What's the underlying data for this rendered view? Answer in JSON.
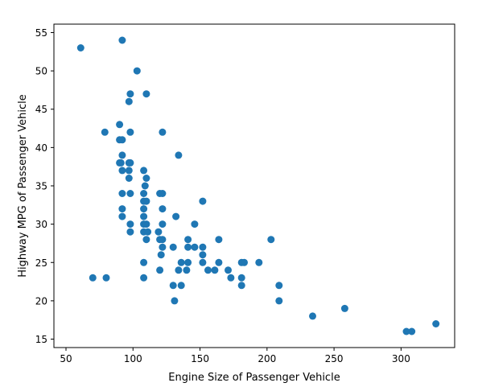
{
  "chart_data": {
    "type": "scatter",
    "title": "",
    "xlabel": "Engine Size of Passenger Vehicle",
    "ylabel": "Highway MPG of Passenger Vehicle",
    "xlim": [
      41,
      340
    ],
    "ylim": [
      13.9,
      56.1
    ],
    "xticks": [
      50,
      100,
      150,
      200,
      250,
      300
    ],
    "yticks": [
      15,
      20,
      25,
      30,
      35,
      40,
      45,
      50,
      55
    ],
    "grid": false,
    "legend": "none",
    "marker_color": "#1f77b4",
    "series": [
      {
        "points": [
          [
            61,
            53
          ],
          [
            70,
            23
          ],
          [
            79,
            42
          ],
          [
            80,
            23
          ],
          [
            90,
            43
          ],
          [
            90,
            38
          ],
          [
            90,
            41
          ],
          [
            91,
            38
          ],
          [
            92,
            54
          ],
          [
            92,
            39
          ],
          [
            92,
            37
          ],
          [
            92,
            34
          ],
          [
            92,
            32
          ],
          [
            92,
            31
          ],
          [
            92,
            41
          ],
          [
            97,
            36
          ],
          [
            97,
            37
          ],
          [
            97,
            46
          ],
          [
            97,
            38
          ],
          [
            98,
            42
          ],
          [
            98,
            38
          ],
          [
            98,
            47
          ],
          [
            98,
            34
          ],
          [
            98,
            30
          ],
          [
            98,
            29
          ],
          [
            103,
            50
          ],
          [
            108,
            37
          ],
          [
            108,
            34
          ],
          [
            108,
            33
          ],
          [
            108,
            32
          ],
          [
            108,
            31
          ],
          [
            108,
            30
          ],
          [
            108,
            29
          ],
          [
            108,
            25
          ],
          [
            108,
            23
          ],
          [
            109,
            35
          ],
          [
            110,
            47
          ],
          [
            110,
            36
          ],
          [
            110,
            33
          ],
          [
            110,
            30
          ],
          [
            110,
            28
          ],
          [
            111,
            29
          ],
          [
            119,
            29
          ],
          [
            120,
            34
          ],
          [
            120,
            28
          ],
          [
            120,
            24
          ],
          [
            121,
            26
          ],
          [
            122,
            42
          ],
          [
            122,
            34
          ],
          [
            122,
            32
          ],
          [
            122,
            30
          ],
          [
            122,
            28
          ],
          [
            122,
            27
          ],
          [
            130,
            27
          ],
          [
            130,
            22
          ],
          [
            131,
            20
          ],
          [
            132,
            31
          ],
          [
            134,
            39
          ],
          [
            134,
            24
          ],
          [
            136,
            25
          ],
          [
            136,
            22
          ],
          [
            140,
            24
          ],
          [
            141,
            27
          ],
          [
            141,
            28
          ],
          [
            141,
            25
          ],
          [
            146,
            30
          ],
          [
            146,
            27
          ],
          [
            152,
            33
          ],
          [
            152,
            27
          ],
          [
            152,
            26
          ],
          [
            152,
            25
          ],
          [
            156,
            24
          ],
          [
            161,
            24
          ],
          [
            164,
            28
          ],
          [
            164,
            25
          ],
          [
            171,
            24
          ],
          [
            173,
            23
          ],
          [
            181,
            25
          ],
          [
            181,
            23
          ],
          [
            181,
            22
          ],
          [
            183,
            25
          ],
          [
            194,
            25
          ],
          [
            203,
            28
          ],
          [
            209,
            22
          ],
          [
            209,
            20
          ],
          [
            234,
            18
          ],
          [
            258,
            19
          ],
          [
            304,
            16
          ],
          [
            308,
            16
          ],
          [
            326,
            17
          ]
        ]
      }
    ]
  }
}
